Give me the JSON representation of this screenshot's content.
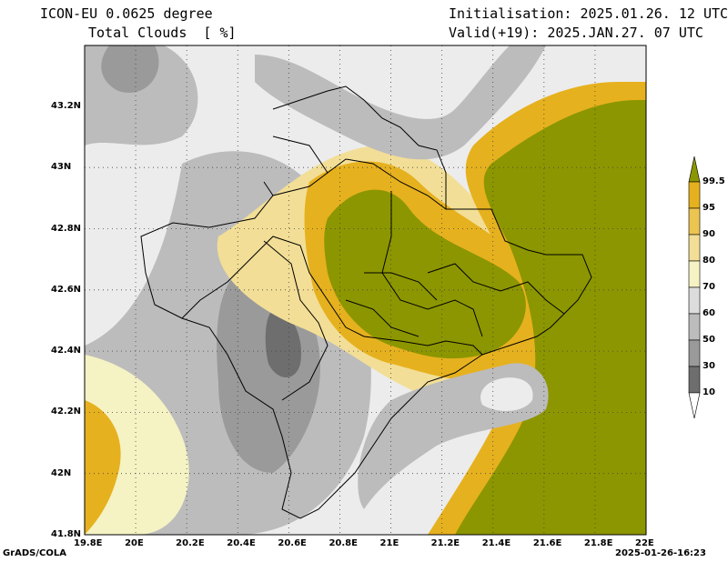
{
  "header": {
    "model": "ICON-EU 0.0625 degree",
    "variable": "Total Clouds  [ %]",
    "init": "Initialisation: 2025.01.26. 12 UTC",
    "valid": "Valid(+19): 2025.JAN.27. 07 UTC"
  },
  "footer": {
    "credit": "GrADS/COLA",
    "timestamp": "2025-01-26-16:23"
  },
  "axes": {
    "lon_labels": [
      "19.8E",
      "20E",
      "20.2E",
      "20.4E",
      "20.6E",
      "20.8E",
      "21E",
      "21.2E",
      "21.4E",
      "21.6E",
      "21.8E",
      "22E"
    ],
    "lat_labels": [
      "43.2N",
      "43N",
      "42.8N",
      "42.6N",
      "42.4N",
      "42.2N",
      "42N",
      "41.8N"
    ]
  },
  "legend": {
    "levels": [
      {
        "label": "99.5",
        "color": "#8c9600"
      },
      {
        "label": "95",
        "color": "#e6b11e"
      },
      {
        "label": "90",
        "color": "#ecc450"
      },
      {
        "label": "80",
        "color": "#f2de96"
      },
      {
        "label": "70",
        "color": "#f5f2c4"
      },
      {
        "label": "60",
        "color": "#dcdcdc"
      },
      {
        "label": "50",
        "color": "#bcbcbc"
      },
      {
        "label": "30",
        "color": "#9a9a9a"
      },
      {
        "label": "10",
        "color": "#6e6e6e"
      }
    ]
  },
  "colors": {
    "olive": "#8c9600",
    "gold": "#e6b11e",
    "yellow": "#ecc450",
    "cream": "#f2de96",
    "pale": "#f5f2c4",
    "light": "#dcdcdc",
    "mid": "#bcbcbc",
    "dark": "#9a9a9a",
    "darkest": "#6e6e6e",
    "clear": "#ececec"
  }
}
